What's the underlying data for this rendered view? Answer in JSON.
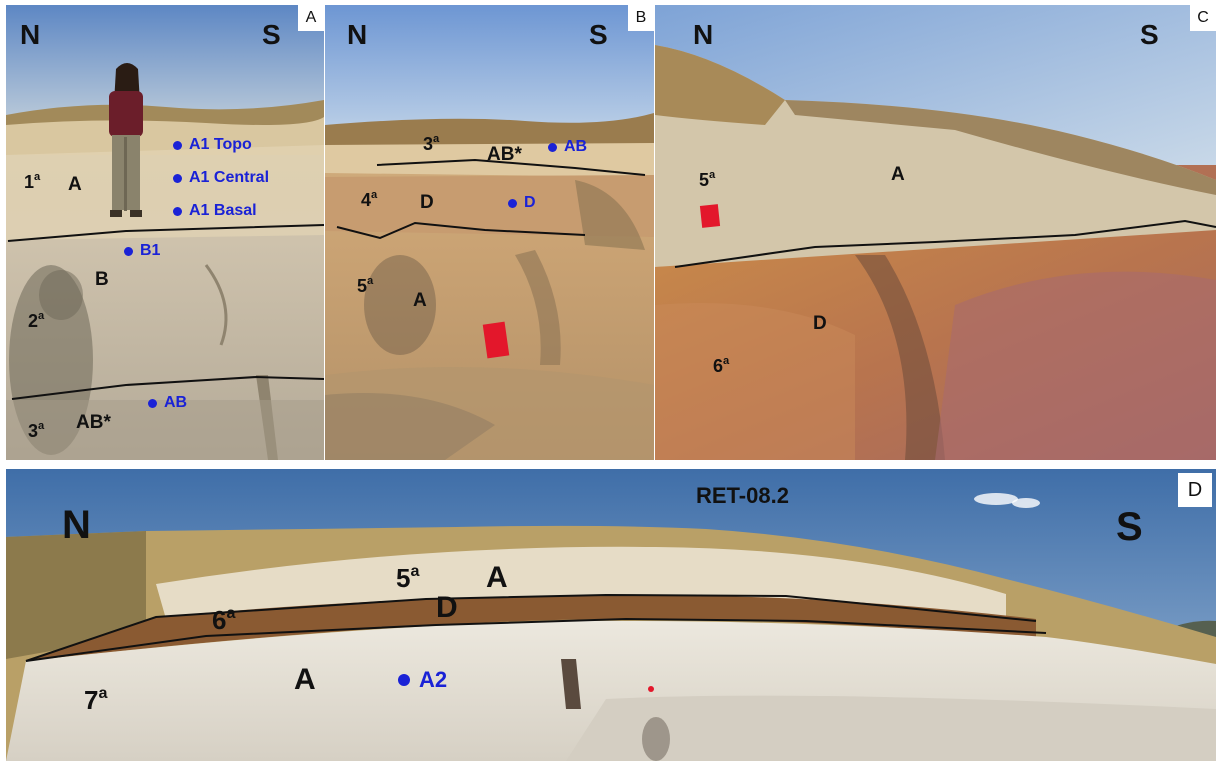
{
  "panels": {
    "a": {
      "tag": "A",
      "north": "N",
      "south": "S",
      "horizons": {
        "top": "A",
        "middle": "B",
        "bottom": "AB*"
      },
      "layers": [
        {
          "n": "1",
          "s": "a"
        },
        {
          "n": "2",
          "s": "a"
        },
        {
          "n": "3",
          "s": "a"
        }
      ],
      "samples": [
        "A1 Topo",
        "A1 Central",
        "A1 Basal",
        "B1",
        "AB"
      ]
    },
    "b": {
      "tag": "B",
      "north": "N",
      "south": "S",
      "horizons": {
        "top": "AB*",
        "middle": "D",
        "bottom": "A"
      },
      "layers": [
        {
          "n": "3",
          "s": "a"
        },
        {
          "n": "4",
          "s": "a"
        },
        {
          "n": "5",
          "s": "a"
        }
      ],
      "samples": [
        "AB",
        "D"
      ]
    },
    "c": {
      "tag": "C",
      "north": "N",
      "south": "S",
      "horizons": {
        "top": "A",
        "bottom": "D"
      },
      "layers": [
        {
          "n": "5",
          "s": "a"
        },
        {
          "n": "6",
          "s": "a"
        }
      ]
    },
    "d": {
      "tag": "D",
      "north": "N",
      "south": "S",
      "title": "RET-08.2",
      "horizons": {
        "top": "A",
        "middle": "D",
        "bottom": "A"
      },
      "layers": [
        {
          "n": "5",
          "s": "a"
        },
        {
          "n": "6",
          "s": "a"
        },
        {
          "n": "7",
          "s": "a"
        }
      ],
      "samples": [
        "A2"
      ]
    }
  }
}
